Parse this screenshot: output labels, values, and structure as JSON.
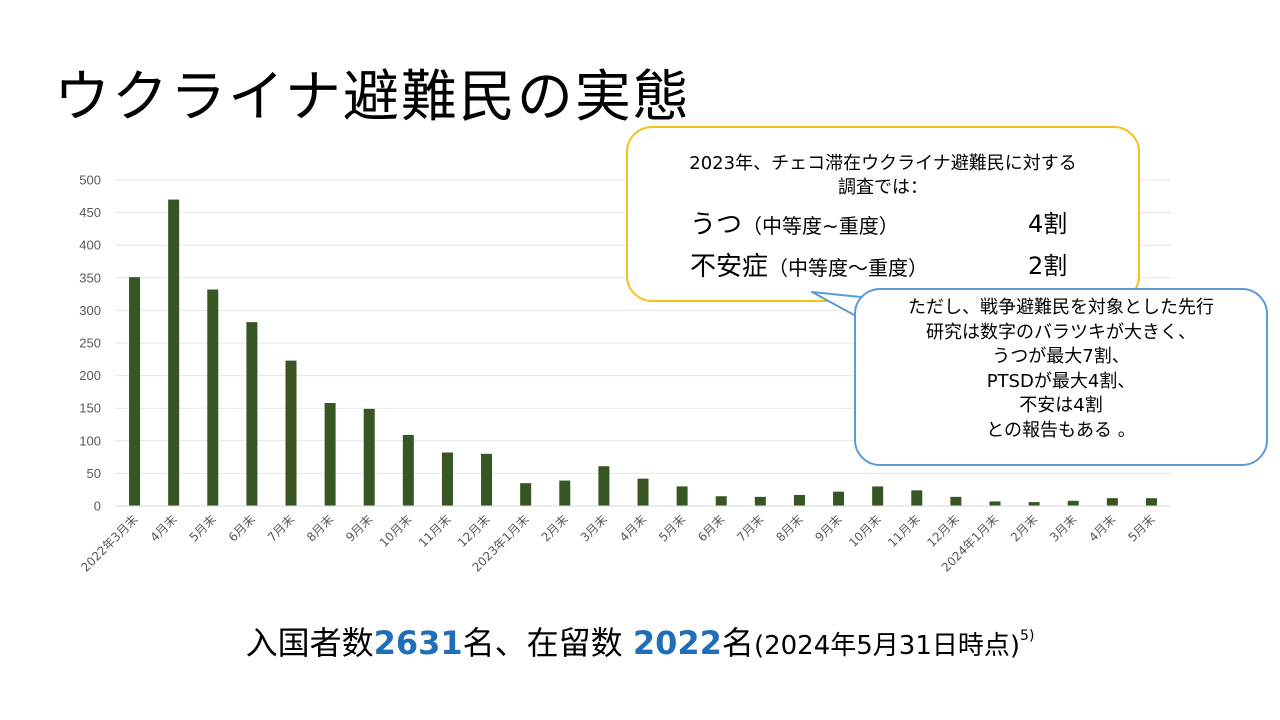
{
  "title": "ウクライナ避難民の実態",
  "chart_data": {
    "type": "bar",
    "categories": [
      "2022年3月末",
      "4月末",
      "5月末",
      "6月末",
      "7月末",
      "8月末",
      "9月末",
      "10月末",
      "11月末",
      "12月末",
      "2023年1月末",
      "2月末",
      "3月末",
      "4月末",
      "5月末",
      "6月末",
      "7月末",
      "8月末",
      "9月末",
      "10月末",
      "11月末",
      "12月末",
      "2024年1月末",
      "2月末",
      "3月末",
      "4月末",
      "5月末"
    ],
    "values": [
      351,
      470,
      332,
      282,
      223,
      158,
      149,
      109,
      82,
      80,
      35,
      39,
      61,
      42,
      30,
      15,
      14,
      17,
      22,
      30,
      24,
      14,
      7,
      6,
      8,
      12,
      12
    ],
    "ylim": [
      0,
      500
    ],
    "yticks": [
      0,
      50,
      100,
      150,
      200,
      250,
      300,
      350,
      400,
      450,
      500
    ],
    "grid": true,
    "bar_color": "#375623"
  },
  "callout1": {
    "intro": "2023年、チェコ滞在ウクライナ避難民に対する調査では：",
    "rows": [
      {
        "label": "うつ",
        "detail": "（中等度~重度）",
        "value": "4割"
      },
      {
        "label": "不安症",
        "detail": "（中等度～重度）",
        "value": "2割"
      }
    ]
  },
  "callout2": {
    "lines": [
      "ただし、戦争避難民を対象とした先行",
      "研究は数字のバラツキが大きく、",
      "うつが最大7割、",
      "PTSDが最大4割、",
      "不安は4割",
      "との報告もある 。"
    ]
  },
  "footer": {
    "part1": "入国者数",
    "num1": "2631",
    "part2": "名、在留数 ",
    "num2": "2022",
    "part3": "名",
    "note": "(2024年5月31日時点)",
    "ref": "5)"
  },
  "colors": {
    "callout1_border": "#f2c318",
    "callout2_border": "#5b9bd5",
    "highlight": "#1f6fb8"
  }
}
